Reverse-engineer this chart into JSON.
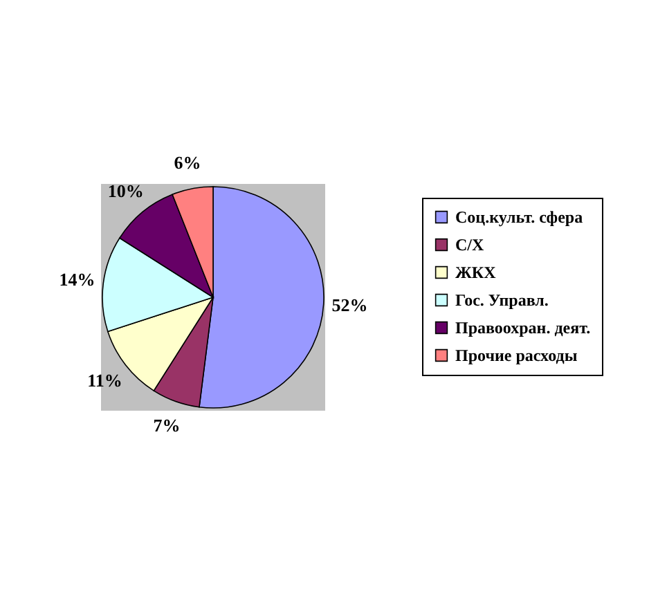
{
  "chart_data": {
    "type": "pie",
    "categories": [
      "Соц.культ. сфера",
      "С/Х",
      "ЖКХ",
      "Гос. Управл.",
      "Правоохран. деят.",
      "Прочие расходы"
    ],
    "values": [
      52,
      7,
      11,
      14,
      10,
      6
    ],
    "colors": [
      "#9999ff",
      "#993366",
      "#ffffcc",
      "#ccffff",
      "#660066",
      "#ff8080"
    ],
    "value_labels": [
      "52%",
      "7%",
      "11%",
      "14%",
      "10%",
      "6%"
    ],
    "legend": "right"
  }
}
